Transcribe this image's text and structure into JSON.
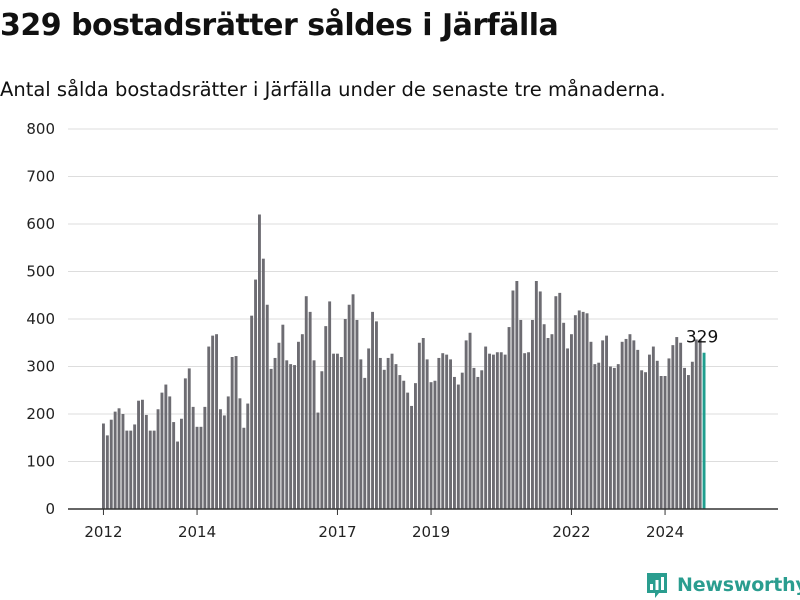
{
  "title": "329 bostadsrätter såldes i Järfälla",
  "subtitle": "Antal sålda bostadsrätter i Järfälla under de senaste tre månaderna.",
  "brand": {
    "name": "Newsworthy",
    "color": "#2a9d8f"
  },
  "colors": {
    "bar": "#6d6c72",
    "highlight": "#1f9e8e",
    "grid": "#dddddd",
    "axis": "#333333"
  },
  "chart_data": {
    "type": "bar",
    "title": "329 bostadsrätter såldes i Järfälla",
    "subtitle": "Antal sålda bostadsrätter i Järfälla under de senaste tre månaderna.",
    "xlabel": "",
    "ylabel": "",
    "ylim": [
      0,
      800
    ],
    "yticks": [
      0,
      100,
      200,
      300,
      400,
      500,
      600,
      700,
      800
    ],
    "xticks": [
      {
        "label": "2012",
        "date": "2012-01"
      },
      {
        "label": "2014",
        "date": "2014-01"
      },
      {
        "label": "2017",
        "date": "2017-01"
      },
      {
        "label": "2019",
        "date": "2019-01"
      },
      {
        "label": "2022",
        "date": "2022-01"
      },
      {
        "label": "2024",
        "date": "2024-01"
      }
    ],
    "grid": true,
    "legend": "none",
    "start_date": "2012-01",
    "frequency": "monthly",
    "highlight_last": true,
    "highlight_label": "329",
    "values": [
      180,
      155,
      188,
      205,
      212,
      200,
      165,
      165,
      178,
      228,
      230,
      198,
      165,
      165,
      210,
      245,
      262,
      237,
      183,
      142,
      190,
      275,
      296,
      215,
      173,
      173,
      215,
      342,
      365,
      368,
      210,
      197,
      237,
      320,
      322,
      233,
      171,
      222,
      407,
      483,
      620,
      527,
      430,
      295,
      318,
      350,
      388,
      313,
      305,
      303,
      352,
      368,
      448,
      415,
      313,
      203,
      290,
      385,
      437,
      327,
      327,
      320,
      400,
      430,
      452,
      398,
      315,
      276,
      338,
      415,
      395,
      318,
      293,
      318,
      327,
      305,
      282,
      270,
      245,
      217,
      265,
      350,
      360,
      315,
      267,
      270,
      318,
      328,
      325,
      315,
      278,
      262,
      287,
      355,
      371,
      297,
      278,
      292,
      342,
      327,
      325,
      330,
      330,
      325,
      383,
      460,
      480,
      398,
      328,
      330,
      398,
      480,
      458,
      389,
      360,
      368,
      448,
      455,
      392,
      338,
      368,
      408,
      418,
      415,
      412,
      352,
      305,
      308,
      355,
      365,
      300,
      297,
      305,
      352,
      358,
      368,
      355,
      335,
      292,
      288,
      325,
      342,
      312,
      280,
      280,
      317,
      345,
      362,
      350,
      297,
      282,
      310,
      357,
      357,
      329
    ]
  }
}
